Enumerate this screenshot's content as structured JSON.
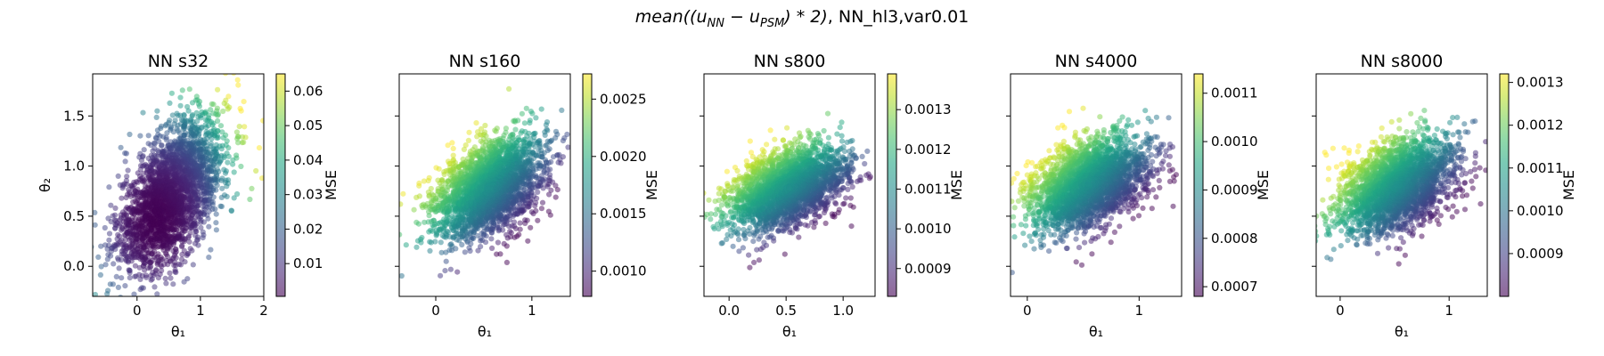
{
  "chart_data": {
    "type": "scatter",
    "suptitle": {
      "prefix": "mean((u",
      "sub1": "NN",
      "mid": " − u",
      "sub2": "PSM",
      "rest": ") * 2)",
      "suffix": ", NN_hl3,var0.01"
    },
    "colormap": "viridis",
    "point_alpha": 0.5,
    "xlabel": "θ₁",
    "ylabel": "θ₂",
    "shared_ylim": [
      -0.3,
      1.92
    ],
    "y_ticks": [
      0.0,
      0.5,
      1.0,
      1.5
    ],
    "colorbar_label": "MSE",
    "panels": [
      {
        "title": "NN s32",
        "xlim": [
          -0.7,
          2.0
        ],
        "x_ticks": [
          0,
          1,
          2
        ],
        "cb_range": [
          0.0005,
          0.065
        ],
        "cb_ticks": [
          0.01,
          0.02,
          0.03,
          0.04,
          0.05,
          0.06
        ],
        "cb_tick_labels": [
          "0.01",
          "0.02",
          "0.03",
          "0.04",
          "0.05",
          "0.06"
        ],
        "center": [
          0.55,
          0.72
        ],
        "spread": [
          0.42,
          0.38
        ],
        "corr": 0.55,
        "color_mode": "radial",
        "color_center": [
          0.3,
          0.45
        ],
        "show_y_labels": true
      },
      {
        "title": "NN s160",
        "xlim": [
          -0.38,
          1.4
        ],
        "x_ticks": [
          0,
          1
        ],
        "cb_range": [
          0.00078,
          0.00272
        ],
        "cb_ticks": [
          0.001,
          0.0015,
          0.002,
          0.0025
        ],
        "cb_tick_labels": [
          "0.0010",
          "0.0015",
          "0.0020",
          "0.0025"
        ],
        "center": [
          0.55,
          0.78
        ],
        "spread": [
          0.28,
          0.25
        ],
        "corr": 0.45,
        "color_mode": "gradient",
        "color_dir": [
          -0.75,
          0.66
        ],
        "show_y_labels": false
      },
      {
        "title": "NN s800",
        "xlim": [
          -0.22,
          1.28
        ],
        "x_ticks": [
          0.0,
          0.5,
          1.0
        ],
        "cb_range": [
          0.00083,
          0.00139
        ],
        "cb_ticks": [
          0.0009,
          0.001,
          0.0011,
          0.0012,
          0.0013
        ],
        "cb_tick_labels": [
          "0.0009",
          "0.0010",
          "0.0011",
          "0.0012",
          "0.0013"
        ],
        "center": [
          0.52,
          0.78
        ],
        "spread": [
          0.25,
          0.21
        ],
        "corr": 0.45,
        "color_mode": "gradient",
        "color_dir": [
          -0.72,
          0.69
        ],
        "show_y_labels": false
      },
      {
        "title": "NN s4000",
        "xlim": [
          -0.15,
          1.38
        ],
        "x_ticks": [
          0,
          1
        ],
        "cb_range": [
          0.00068,
          0.00114
        ],
        "cb_ticks": [
          0.0007,
          0.0008,
          0.0009,
          0.001,
          0.0011
        ],
        "cb_tick_labels": [
          "0.0007",
          "0.0008",
          "0.0009",
          "0.0010",
          "0.0011"
        ],
        "center": [
          0.55,
          0.82
        ],
        "spread": [
          0.26,
          0.23
        ],
        "corr": 0.4,
        "color_mode": "gradient",
        "color_dir": [
          -0.78,
          0.62
        ],
        "show_y_labels": false
      },
      {
        "title": "NN s8000",
        "xlim": [
          -0.22,
          1.35
        ],
        "x_ticks": [
          0,
          1
        ],
        "cb_range": [
          0.0008,
          0.00132
        ],
        "cb_ticks": [
          0.0009,
          0.001,
          0.0011,
          0.0012,
          0.0013
        ],
        "cb_tick_labels": [
          "0.0009",
          "0.0010",
          "0.0011",
          "0.0012",
          "0.0013"
        ],
        "center": [
          0.52,
          0.8
        ],
        "spread": [
          0.26,
          0.23
        ],
        "corr": 0.4,
        "color_mode": "gradient",
        "color_dir": [
          -0.78,
          0.62
        ],
        "show_y_labels": false
      }
    ]
  }
}
